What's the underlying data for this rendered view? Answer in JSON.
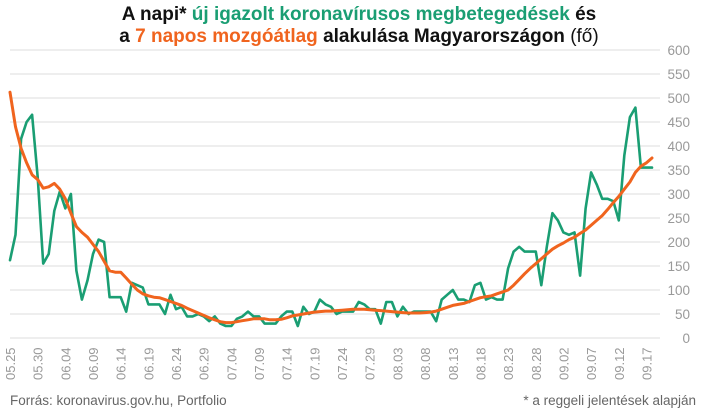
{
  "title": {
    "line1_pre": "A napi*",
    "line1_green": "új igazolt koronavírusos megbetegedések",
    "line1_post": "és",
    "line2_pre": "a",
    "line2_orange": "7 napos mozgóátlag",
    "line2_mid": "alakulása Magyarországon",
    "line2_unit": "(fő)"
  },
  "footer": {
    "source": "Forrás: koronavirus.gov.hu, Portfolio",
    "note": "* a reggeli jelentések alapján"
  },
  "colors": {
    "daily": "#1a9e73",
    "average": "#f0641e",
    "grid": "#dddddd",
    "tick": "#999999"
  },
  "chart_data": {
    "type": "line",
    "x_tick_labels": [
      "05.25",
      "05.30",
      "06.04",
      "06.09",
      "06.14",
      "06.19",
      "06.24",
      "06.29",
      "07.04",
      "07.09",
      "07.14",
      "07.19",
      "07.24",
      "07.29",
      "08.03",
      "08.08",
      "08.13",
      "08.18",
      "08.23",
      "08.28",
      "09.02",
      "09.07",
      "09.12",
      "09.17"
    ],
    "x_start": "05.25",
    "x_end": "09.22",
    "ylim": [
      0,
      600
    ],
    "y_ticks": [
      0,
      50,
      100,
      150,
      200,
      250,
      300,
      350,
      400,
      450,
      500,
      550,
      600
    ],
    "grid": "horizontal",
    "series": [
      {
        "label": "daily",
        "values": [
          162,
          215,
          415,
          450,
          465,
          335,
          155,
          175,
          265,
          305,
          270,
          300,
          140,
          80,
          120,
          175,
          205,
          200,
          85,
          85,
          85,
          55,
          115,
          110,
          105,
          70,
          70,
          70,
          50,
          90,
          60,
          65,
          45,
          45,
          50,
          45,
          35,
          45,
          30,
          25,
          25,
          40,
          45,
          55,
          45,
          45,
          30,
          30,
          30,
          45,
          55,
          55,
          25,
          65,
          50,
          55,
          80,
          70,
          65,
          50,
          55,
          55,
          55,
          75,
          70,
          60,
          60,
          30,
          75,
          75,
          45,
          65,
          50,
          55,
          55,
          55,
          55,
          35,
          80,
          90,
          100,
          80,
          80,
          75,
          110,
          115,
          80,
          85,
          80,
          80,
          145,
          180,
          190,
          180,
          180,
          180,
          110,
          190,
          260,
          245,
          220,
          215,
          220,
          130,
          270,
          345,
          320,
          290,
          290,
          285,
          245,
          380,
          460,
          480,
          355,
          355,
          355
        ],
        "style": "green line"
      },
      {
        "label": "7-day average",
        "values": [
          512,
          440,
          395,
          365,
          340,
          330,
          312,
          315,
          322,
          310,
          290,
          260,
          232,
          220,
          210,
          195,
          180,
          160,
          140,
          137,
          137,
          125,
          112,
          100,
          92,
          88,
          85,
          84,
          80,
          76,
          72,
          68,
          62,
          57,
          52,
          47,
          42,
          38,
          34,
          32,
          32,
          34,
          36,
          38,
          40,
          40,
          40,
          38,
          38,
          39,
          42,
          46,
          48,
          50,
          52,
          54,
          55,
          56,
          56,
          57,
          58,
          59,
          60,
          60,
          60,
          59,
          58,
          57,
          56,
          55,
          54,
          53,
          52,
          52,
          52,
          53,
          54,
          56,
          60,
          64,
          68,
          70,
          72,
          76,
          80,
          84,
          86,
          88,
          92,
          96,
          100,
          110,
          122,
          134,
          145,
          155,
          165,
          175,
          185,
          192,
          198,
          205,
          210,
          218,
          225,
          235,
          245,
          255,
          268,
          282,
          295,
          310,
          325,
          345,
          358,
          365,
          375
        ],
        "style": "orange line"
      }
    ]
  }
}
